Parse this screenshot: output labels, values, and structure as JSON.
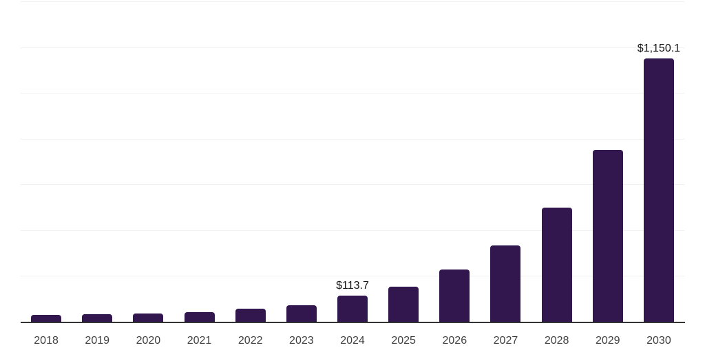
{
  "chart_data": {
    "type": "bar",
    "title": "",
    "xlabel": "",
    "ylabel": "",
    "categories": [
      "2018",
      "2019",
      "2020",
      "2021",
      "2022",
      "2023",
      "2024",
      "2025",
      "2026",
      "2027",
      "2028",
      "2029",
      "2030"
    ],
    "values": [
      29,
      34,
      35,
      43,
      56,
      72,
      113.7,
      154,
      227,
      335,
      498,
      751,
      1150.1
    ],
    "data_labels": {
      "2024": "$113.7",
      "2030": "$1,150.1"
    },
    "ylim": [
      0,
      1400
    ],
    "gridline_step": 200,
    "grid": true,
    "legend": "none",
    "bar_color": "#31174d",
    "axis_line_color": "#333333",
    "gridline_color": "#f0f0f1",
    "value_label_color": "#141414",
    "tick_label_color": "#404040",
    "background_color": "#ffffff"
  }
}
